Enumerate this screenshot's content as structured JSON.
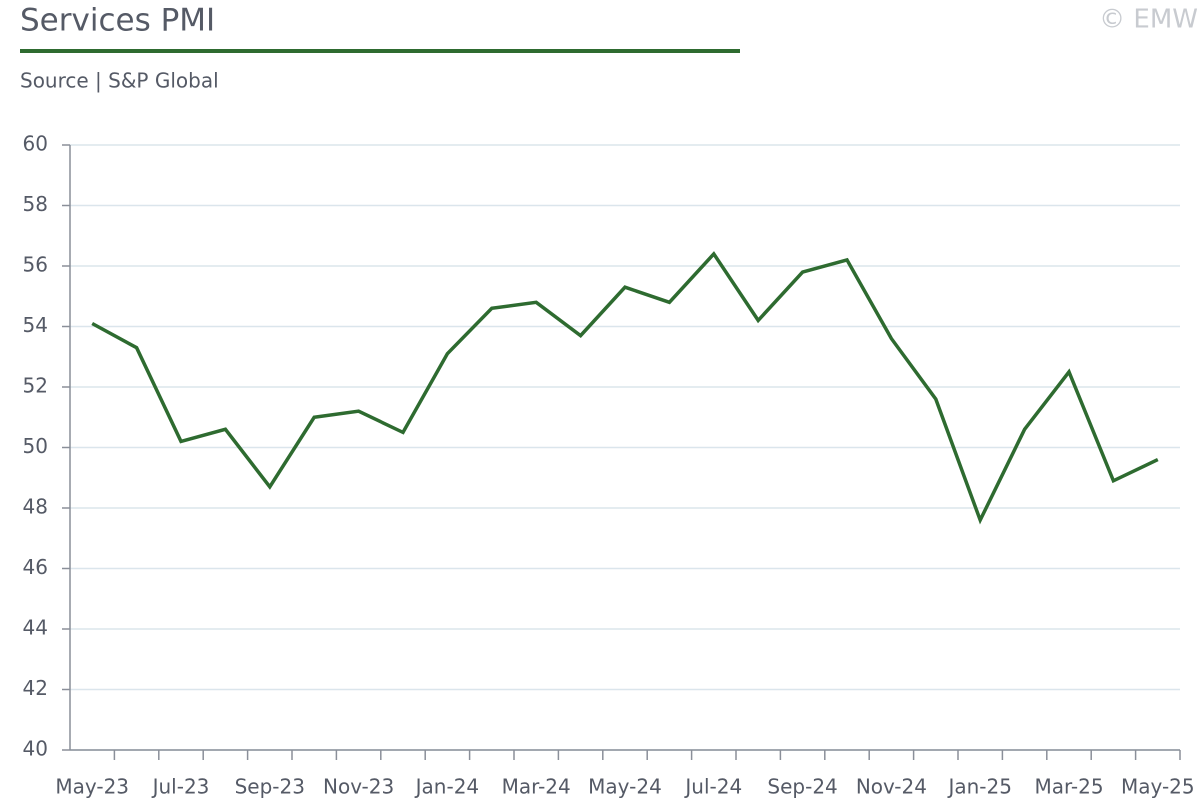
{
  "chart_data": {
    "type": "line",
    "title": "Services PMI",
    "subtitle": "Source | S&P Global",
    "credit": "© EMW",
    "categories": [
      "May-23",
      null,
      "Jul-23",
      null,
      "Sep-23",
      null,
      "Nov-23",
      null,
      "Jan-24",
      null,
      "Mar-24",
      null,
      "May-24",
      null,
      "Jul-24",
      null,
      "Sep-24",
      null,
      "Nov-24",
      null,
      "Jan-25",
      null,
      "Mar-25",
      null,
      "May-25"
    ],
    "values": [
      54.1,
      53.3,
      50.2,
      50.6,
      48.7,
      51.0,
      51.2,
      50.5,
      53.1,
      54.6,
      54.8,
      53.7,
      55.3,
      54.8,
      56.4,
      54.2,
      55.8,
      56.2,
      53.6,
      51.6,
      47.6,
      50.6,
      52.5,
      48.9,
      49.6
    ],
    "color": "#2e6b30",
    "ylim": [
      40,
      60
    ],
    "yticks": [
      40,
      42,
      44,
      46,
      48,
      50,
      52,
      54,
      56,
      58,
      60
    ],
    "grid": true
  }
}
